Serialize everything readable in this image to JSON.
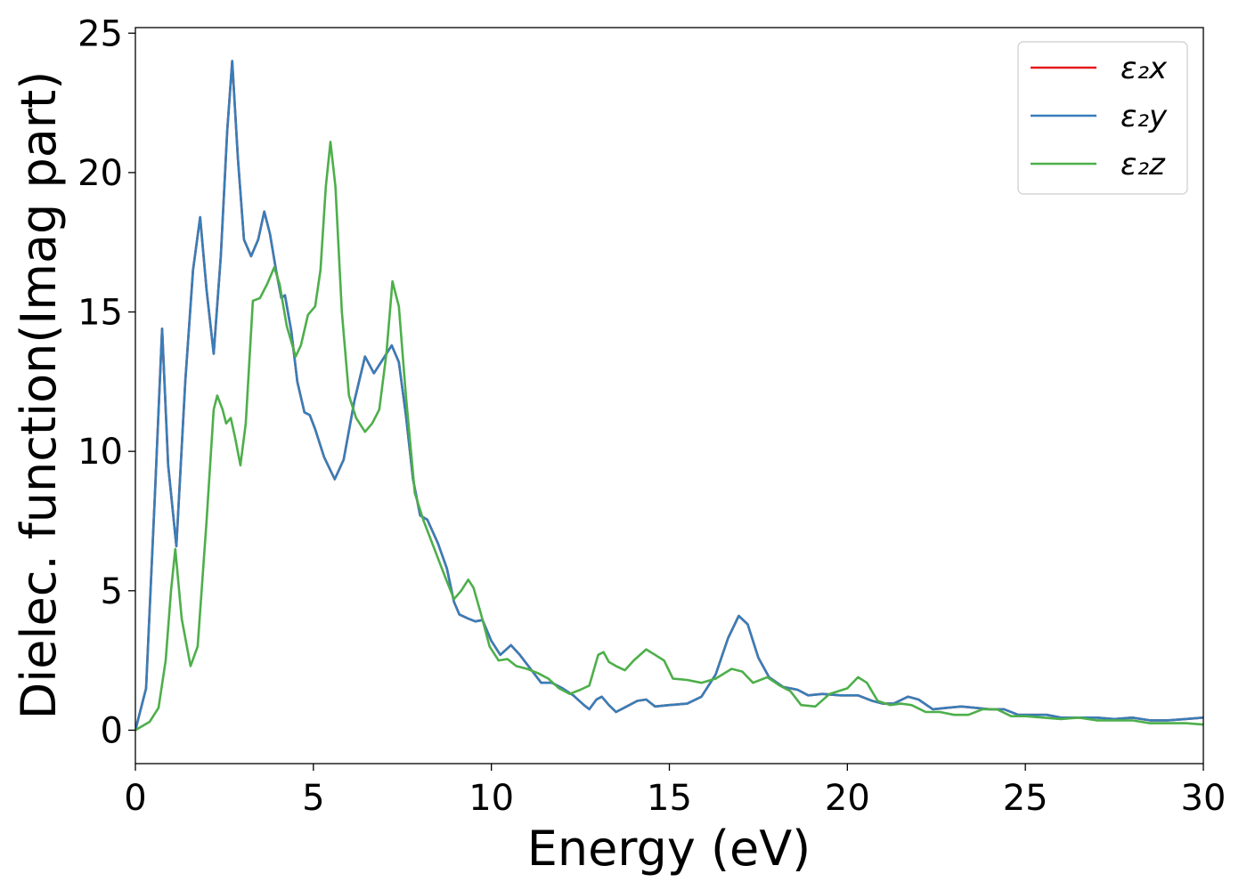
{
  "chart_data": {
    "type": "line",
    "title": "",
    "xlabel": "Energy (eV)",
    "ylabel": "Dielec. function(Imag part)",
    "xlim": [
      0,
      30
    ],
    "ylim": [
      -1.2,
      25.2
    ],
    "xticks": [
      0,
      5,
      10,
      15,
      20,
      25,
      30
    ],
    "yticks": [
      0,
      5,
      10,
      15,
      20,
      25
    ],
    "grid": false,
    "legend_position": "top-right",
    "series": [
      {
        "name": "ε₂x",
        "color": "#e41a1c",
        "points": [
          [
            0,
            0
          ],
          [
            0.3,
            1.5
          ],
          [
            0.55,
            8.5
          ],
          [
            0.75,
            14.4
          ],
          [
            0.92,
            9.5
          ],
          [
            1.15,
            6.6
          ],
          [
            1.4,
            12.5
          ],
          [
            1.62,
            16.5
          ],
          [
            1.82,
            18.4
          ],
          [
            2.0,
            15.8
          ],
          [
            2.2,
            13.5
          ],
          [
            2.4,
            17.0
          ],
          [
            2.58,
            21.5
          ],
          [
            2.72,
            24.0
          ],
          [
            2.88,
            20.5
          ],
          [
            3.05,
            17.6
          ],
          [
            3.25,
            17.0
          ],
          [
            3.45,
            17.6
          ],
          [
            3.62,
            18.6
          ],
          [
            3.78,
            17.8
          ],
          [
            3.95,
            16.5
          ],
          [
            4.1,
            15.5
          ],
          [
            4.2,
            15.6
          ],
          [
            4.38,
            14.3
          ],
          [
            4.55,
            12.5
          ],
          [
            4.75,
            11.4
          ],
          [
            4.9,
            11.3
          ],
          [
            5.05,
            10.8
          ],
          [
            5.3,
            9.8
          ],
          [
            5.6,
            9.0
          ],
          [
            5.85,
            9.7
          ],
          [
            6.15,
            11.8
          ],
          [
            6.45,
            13.4
          ],
          [
            6.7,
            12.8
          ],
          [
            6.95,
            13.3
          ],
          [
            7.2,
            13.8
          ],
          [
            7.4,
            13.2
          ],
          [
            7.6,
            11.3
          ],
          [
            7.8,
            9.0
          ],
          [
            8.0,
            7.7
          ],
          [
            8.2,
            7.55
          ],
          [
            8.5,
            6.7
          ],
          [
            8.75,
            5.8
          ],
          [
            8.95,
            4.6
          ],
          [
            9.1,
            4.15
          ],
          [
            9.35,
            4.0
          ],
          [
            9.55,
            3.9
          ],
          [
            9.75,
            3.95
          ],
          [
            10.0,
            3.2
          ],
          [
            10.25,
            2.7
          ],
          [
            10.55,
            3.05
          ],
          [
            10.8,
            2.7
          ],
          [
            11.1,
            2.2
          ],
          [
            11.4,
            1.7
          ],
          [
            11.7,
            1.7
          ],
          [
            12.0,
            1.5
          ],
          [
            12.3,
            1.25
          ],
          [
            12.6,
            0.9
          ],
          [
            12.75,
            0.75
          ],
          [
            12.95,
            1.1
          ],
          [
            13.1,
            1.2
          ],
          [
            13.3,
            0.9
          ],
          [
            13.5,
            0.65
          ],
          [
            13.8,
            0.85
          ],
          [
            14.1,
            1.05
          ],
          [
            14.35,
            1.1
          ],
          [
            14.6,
            0.85
          ],
          [
            15.0,
            0.9
          ],
          [
            15.5,
            0.95
          ],
          [
            15.9,
            1.2
          ],
          [
            16.3,
            2.0
          ],
          [
            16.65,
            3.3
          ],
          [
            16.95,
            4.1
          ],
          [
            17.2,
            3.8
          ],
          [
            17.5,
            2.6
          ],
          [
            17.8,
            1.9
          ],
          [
            18.2,
            1.55
          ],
          [
            18.6,
            1.45
          ],
          [
            18.9,
            1.25
          ],
          [
            19.3,
            1.3
          ],
          [
            19.8,
            1.25
          ],
          [
            20.3,
            1.25
          ],
          [
            20.7,
            1.05
          ],
          [
            21.0,
            0.95
          ],
          [
            21.3,
            0.95
          ],
          [
            21.7,
            1.2
          ],
          [
            22.0,
            1.1
          ],
          [
            22.4,
            0.75
          ],
          [
            22.8,
            0.8
          ],
          [
            23.2,
            0.85
          ],
          [
            23.6,
            0.8
          ],
          [
            24.0,
            0.75
          ],
          [
            24.4,
            0.75
          ],
          [
            24.8,
            0.55
          ],
          [
            25.2,
            0.55
          ],
          [
            25.6,
            0.55
          ],
          [
            26.0,
            0.45
          ],
          [
            26.5,
            0.45
          ],
          [
            27.0,
            0.45
          ],
          [
            27.5,
            0.4
          ],
          [
            28.0,
            0.45
          ],
          [
            28.5,
            0.35
          ],
          [
            29.0,
            0.35
          ],
          [
            29.5,
            0.4
          ],
          [
            30.0,
            0.45
          ]
        ]
      },
      {
        "name": "ε₂y",
        "color": "#377eb8",
        "points": [
          [
            0,
            0
          ],
          [
            0.3,
            1.5
          ],
          [
            0.55,
            8.5
          ],
          [
            0.75,
            14.4
          ],
          [
            0.92,
            9.5
          ],
          [
            1.15,
            6.6
          ],
          [
            1.4,
            12.5
          ],
          [
            1.62,
            16.5
          ],
          [
            1.82,
            18.4
          ],
          [
            2.0,
            15.8
          ],
          [
            2.2,
            13.5
          ],
          [
            2.4,
            17.0
          ],
          [
            2.58,
            21.5
          ],
          [
            2.72,
            24.0
          ],
          [
            2.88,
            20.5
          ],
          [
            3.05,
            17.6
          ],
          [
            3.25,
            17.0
          ],
          [
            3.45,
            17.6
          ],
          [
            3.62,
            18.6
          ],
          [
            3.78,
            17.8
          ],
          [
            3.95,
            16.5
          ],
          [
            4.1,
            15.5
          ],
          [
            4.2,
            15.6
          ],
          [
            4.38,
            14.3
          ],
          [
            4.55,
            12.5
          ],
          [
            4.75,
            11.4
          ],
          [
            4.9,
            11.3
          ],
          [
            5.05,
            10.8
          ],
          [
            5.3,
            9.8
          ],
          [
            5.6,
            9.0
          ],
          [
            5.85,
            9.7
          ],
          [
            6.15,
            11.8
          ],
          [
            6.45,
            13.4
          ],
          [
            6.7,
            12.8
          ],
          [
            6.95,
            13.3
          ],
          [
            7.2,
            13.8
          ],
          [
            7.4,
            13.2
          ],
          [
            7.6,
            11.3
          ],
          [
            7.8,
            9.0
          ],
          [
            8.0,
            7.7
          ],
          [
            8.2,
            7.55
          ],
          [
            8.5,
            6.7
          ],
          [
            8.75,
            5.8
          ],
          [
            8.95,
            4.6
          ],
          [
            9.1,
            4.15
          ],
          [
            9.35,
            4.0
          ],
          [
            9.55,
            3.9
          ],
          [
            9.75,
            3.95
          ],
          [
            10.0,
            3.2
          ],
          [
            10.25,
            2.7
          ],
          [
            10.55,
            3.05
          ],
          [
            10.8,
            2.7
          ],
          [
            11.1,
            2.2
          ],
          [
            11.4,
            1.7
          ],
          [
            11.7,
            1.7
          ],
          [
            12.0,
            1.5
          ],
          [
            12.3,
            1.25
          ],
          [
            12.6,
            0.9
          ],
          [
            12.75,
            0.75
          ],
          [
            12.95,
            1.1
          ],
          [
            13.1,
            1.2
          ],
          [
            13.3,
            0.9
          ],
          [
            13.5,
            0.65
          ],
          [
            13.8,
            0.85
          ],
          [
            14.1,
            1.05
          ],
          [
            14.35,
            1.1
          ],
          [
            14.6,
            0.85
          ],
          [
            15.0,
            0.9
          ],
          [
            15.5,
            0.95
          ],
          [
            15.9,
            1.2
          ],
          [
            16.3,
            2.0
          ],
          [
            16.65,
            3.3
          ],
          [
            16.95,
            4.1
          ],
          [
            17.2,
            3.8
          ],
          [
            17.5,
            2.6
          ],
          [
            17.8,
            1.9
          ],
          [
            18.2,
            1.55
          ],
          [
            18.6,
            1.45
          ],
          [
            18.9,
            1.25
          ],
          [
            19.3,
            1.3
          ],
          [
            19.8,
            1.25
          ],
          [
            20.3,
            1.25
          ],
          [
            20.7,
            1.05
          ],
          [
            21.0,
            0.95
          ],
          [
            21.3,
            0.95
          ],
          [
            21.7,
            1.2
          ],
          [
            22.0,
            1.1
          ],
          [
            22.4,
            0.75
          ],
          [
            22.8,
            0.8
          ],
          [
            23.2,
            0.85
          ],
          [
            23.6,
            0.8
          ],
          [
            24.0,
            0.75
          ],
          [
            24.4,
            0.75
          ],
          [
            24.8,
            0.55
          ],
          [
            25.2,
            0.55
          ],
          [
            25.6,
            0.55
          ],
          [
            26.0,
            0.45
          ],
          [
            26.5,
            0.45
          ],
          [
            27.0,
            0.45
          ],
          [
            27.5,
            0.4
          ],
          [
            28.0,
            0.45
          ],
          [
            28.5,
            0.35
          ],
          [
            29.0,
            0.35
          ],
          [
            29.5,
            0.4
          ],
          [
            30.0,
            0.45
          ]
        ]
      },
      {
        "name": "ε₂z",
        "color": "#4daf4a",
        "points": [
          [
            0,
            0
          ],
          [
            0.4,
            0.3
          ],
          [
            0.65,
            0.8
          ],
          [
            0.85,
            2.5
          ],
          [
            1.0,
            5.0
          ],
          [
            1.12,
            6.5
          ],
          [
            1.3,
            4.0
          ],
          [
            1.55,
            2.3
          ],
          [
            1.75,
            3.0
          ],
          [
            2.0,
            7.5
          ],
          [
            2.2,
            11.5
          ],
          [
            2.3,
            12.0
          ],
          [
            2.45,
            11.5
          ],
          [
            2.55,
            11.0
          ],
          [
            2.68,
            11.2
          ],
          [
            2.8,
            10.5
          ],
          [
            2.95,
            9.5
          ],
          [
            3.1,
            11.0
          ],
          [
            3.3,
            15.4
          ],
          [
            3.5,
            15.5
          ],
          [
            3.7,
            16.0
          ],
          [
            3.9,
            16.6
          ],
          [
            4.05,
            16.0
          ],
          [
            4.25,
            14.5
          ],
          [
            4.5,
            13.4
          ],
          [
            4.65,
            13.8
          ],
          [
            4.85,
            14.9
          ],
          [
            5.05,
            15.2
          ],
          [
            5.2,
            16.5
          ],
          [
            5.35,
            19.5
          ],
          [
            5.48,
            21.1
          ],
          [
            5.62,
            19.5
          ],
          [
            5.8,
            15.0
          ],
          [
            6.0,
            12.0
          ],
          [
            6.2,
            11.2
          ],
          [
            6.45,
            10.7
          ],
          [
            6.65,
            11.0
          ],
          [
            6.85,
            11.5
          ],
          [
            7.05,
            13.5
          ],
          [
            7.22,
            16.1
          ],
          [
            7.4,
            15.2
          ],
          [
            7.6,
            12.0
          ],
          [
            7.85,
            8.5
          ],
          [
            8.1,
            7.5
          ],
          [
            8.4,
            6.5
          ],
          [
            8.7,
            5.5
          ],
          [
            8.95,
            4.7
          ],
          [
            9.15,
            5.0
          ],
          [
            9.35,
            5.4
          ],
          [
            9.5,
            5.1
          ],
          [
            9.7,
            4.2
          ],
          [
            9.95,
            3.0
          ],
          [
            10.2,
            2.5
          ],
          [
            10.45,
            2.55
          ],
          [
            10.7,
            2.3
          ],
          [
            11.0,
            2.2
          ],
          [
            11.3,
            2.05
          ],
          [
            11.6,
            1.85
          ],
          [
            11.9,
            1.5
          ],
          [
            12.2,
            1.3
          ],
          [
            12.5,
            1.45
          ],
          [
            12.75,
            1.6
          ],
          [
            13.0,
            2.7
          ],
          [
            13.15,
            2.8
          ],
          [
            13.3,
            2.45
          ],
          [
            13.5,
            2.3
          ],
          [
            13.75,
            2.15
          ],
          [
            14.0,
            2.5
          ],
          [
            14.35,
            2.9
          ],
          [
            14.6,
            2.7
          ],
          [
            14.85,
            2.5
          ],
          [
            15.1,
            1.85
          ],
          [
            15.5,
            1.8
          ],
          [
            15.9,
            1.7
          ],
          [
            16.3,
            1.85
          ],
          [
            16.75,
            2.2
          ],
          [
            17.05,
            2.1
          ],
          [
            17.35,
            1.7
          ],
          [
            17.75,
            1.9
          ],
          [
            18.1,
            1.6
          ],
          [
            18.4,
            1.4
          ],
          [
            18.7,
            0.9
          ],
          [
            19.1,
            0.85
          ],
          [
            19.5,
            1.3
          ],
          [
            20.0,
            1.5
          ],
          [
            20.3,
            1.9
          ],
          [
            20.55,
            1.7
          ],
          [
            20.85,
            1.05
          ],
          [
            21.2,
            0.9
          ],
          [
            21.5,
            0.95
          ],
          [
            21.8,
            0.9
          ],
          [
            22.2,
            0.65
          ],
          [
            22.6,
            0.65
          ],
          [
            23.0,
            0.55
          ],
          [
            23.4,
            0.55
          ],
          [
            23.8,
            0.75
          ],
          [
            24.2,
            0.75
          ],
          [
            24.6,
            0.5
          ],
          [
            25.0,
            0.5
          ],
          [
            25.5,
            0.45
          ],
          [
            26.0,
            0.4
          ],
          [
            26.5,
            0.45
          ],
          [
            27.0,
            0.35
          ],
          [
            27.5,
            0.35
          ],
          [
            28.0,
            0.35
          ],
          [
            28.5,
            0.25
          ],
          [
            29.0,
            0.25
          ],
          [
            29.5,
            0.25
          ],
          [
            30.0,
            0.2
          ]
        ]
      }
    ]
  }
}
